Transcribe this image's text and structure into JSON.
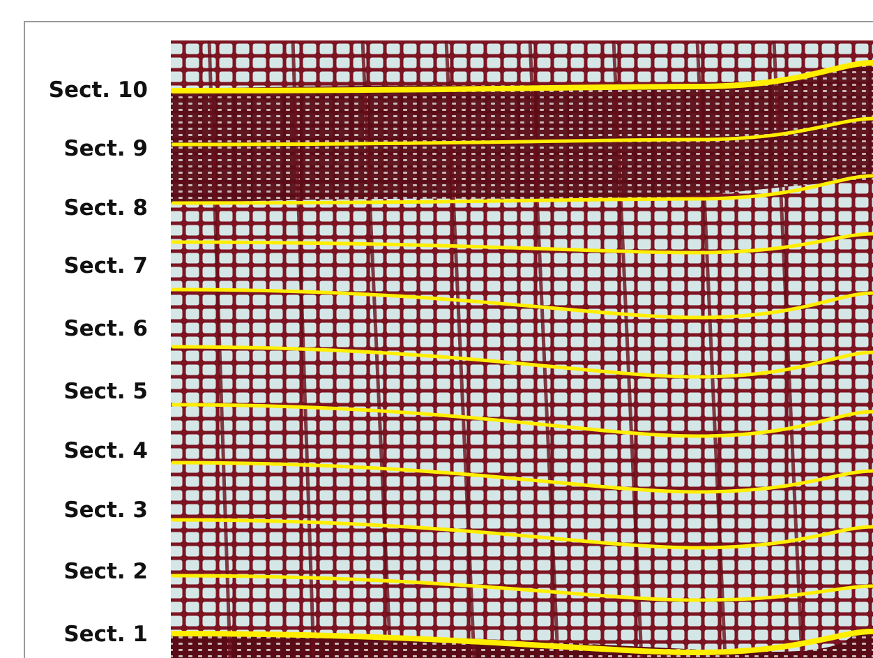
{
  "figure": {
    "section_labels": [
      "Sect. 10",
      "Sect. 9",
      "Sect. 8",
      "Sect. 7",
      "Sect. 6",
      "Sect. 5",
      "Sect. 4",
      "Sect. 3",
      "Sect. 2",
      "Sect. 1"
    ]
  }
}
